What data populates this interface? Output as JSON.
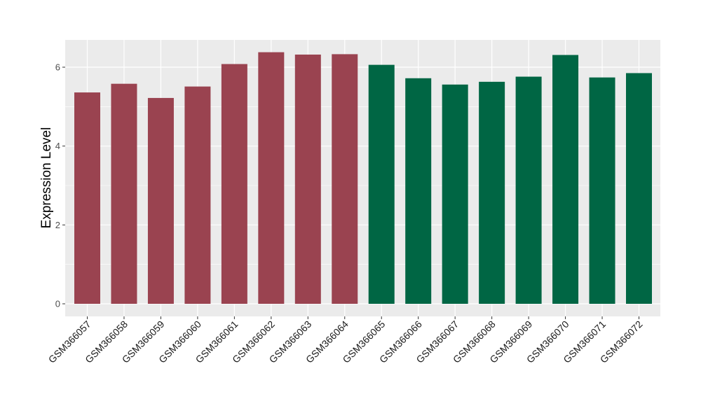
{
  "chart_data": {
    "type": "bar",
    "title": "",
    "xlabel": "",
    "ylabel": "Expression Level",
    "ylim": [
      0,
      6.65
    ],
    "yticks": [
      0,
      2,
      4,
      6
    ],
    "grid": true,
    "legend": "none",
    "categories": [
      "GSM366057",
      "GSM366058",
      "GSM366059",
      "GSM366060",
      "GSM366061",
      "GSM366062",
      "GSM366063",
      "GSM366064",
      "GSM366065",
      "GSM366066",
      "GSM366067",
      "GSM366068",
      "GSM366069",
      "GSM366070",
      "GSM366071",
      "GSM366072"
    ],
    "values": [
      5.36,
      5.58,
      5.22,
      5.51,
      6.08,
      6.38,
      6.32,
      6.33,
      6.06,
      5.72,
      5.56,
      5.63,
      5.76,
      6.31,
      5.74,
      5.85
    ],
    "bar_colors": [
      "#9a4350",
      "#9a4350",
      "#9a4350",
      "#9a4350",
      "#9a4350",
      "#9a4350",
      "#9a4350",
      "#9a4350",
      "#006644",
      "#006644",
      "#006644",
      "#006644",
      "#006644",
      "#006644",
      "#006644",
      "#006644"
    ],
    "panel_background": "#ebebeb",
    "grid_color": "#ffffff"
  }
}
